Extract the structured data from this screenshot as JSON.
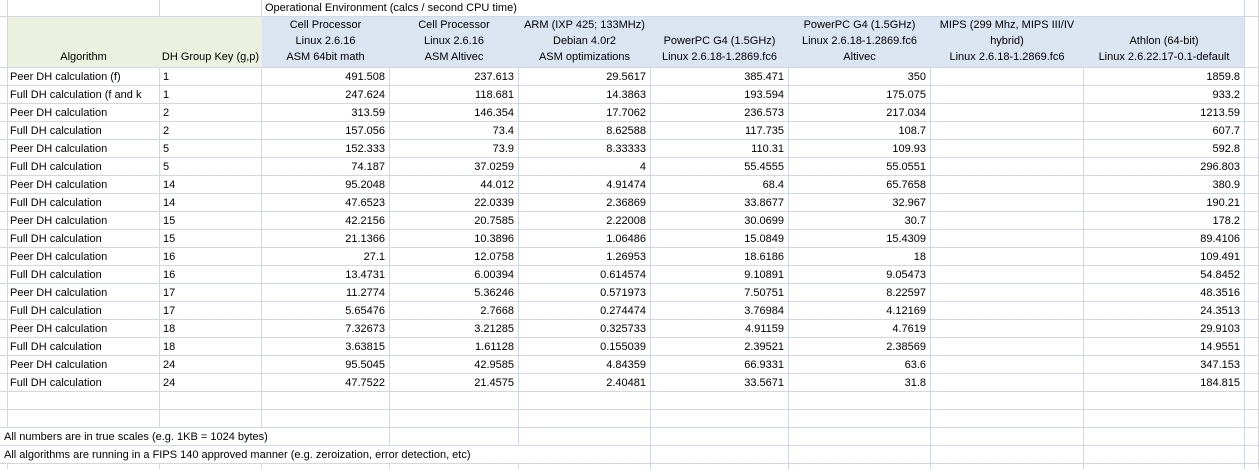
{
  "title": "Operational Environment (calcs / second CPU time)",
  "headers": {
    "algorithm": "Algorithm",
    "group_key": "DH Group Key (g,p)"
  },
  "environments": [
    {
      "name": "cell-processor-asm-64bit",
      "lines": [
        "Cell Processor",
        "Linux 2.6.16",
        "ASM 64bit math"
      ]
    },
    {
      "name": "cell-processor-asm-altivec",
      "lines": [
        "Cell Processor",
        "Linux 2.6.16",
        "ASM Altivec"
      ]
    },
    {
      "name": "arm-ixp425",
      "lines": [
        "ARM (IXP 425; 133MHz)",
        "Debian 4.0r2",
        "ASM optimizations"
      ]
    },
    {
      "name": "powerpc-g4",
      "lines": [
        "PowerPC G4 (1.5GHz)",
        "Linux 2.6.18-1.2869.fc6"
      ]
    },
    {
      "name": "powerpc-g4-altivec",
      "lines": [
        "PowerPC G4 (1.5GHz)",
        "Linux 2.6.18-1.2869.fc6",
        "Altivec"
      ]
    },
    {
      "name": "mips-hybrid",
      "lines": [
        "MIPS (299 Mhz, MIPS III/IV",
        "hybrid)",
        "Linux 2.6.18-1.2869.fc6"
      ]
    },
    {
      "name": "athlon-64bit",
      "lines": [
        "Athlon (64-bit)",
        "Linux 2.6.22.17-0.1-default"
      ]
    }
  ],
  "rows": [
    {
      "algorithm": "Peer DH calculation (f)",
      "group": "1",
      "values": [
        "491.508",
        "237.613",
        "29.5617",
        "385.471",
        "350",
        "",
        "1859.8"
      ]
    },
    {
      "algorithm": "Full DH calculation (f and k",
      "group": "1",
      "values": [
        "247.624",
        "118.681",
        "14.3863",
        "193.594",
        "175.075",
        "",
        "933.2"
      ]
    },
    {
      "algorithm": "Peer DH calculation",
      "group": "2",
      "values": [
        "313.59",
        "146.354",
        "17.7062",
        "236.573",
        "217.034",
        "",
        "1213.59"
      ]
    },
    {
      "algorithm": "Full DH calculation",
      "group": "2",
      "values": [
        "157.056",
        "73.4",
        "8.62588",
        "117.735",
        "108.7",
        "",
        "607.7"
      ]
    },
    {
      "algorithm": "Peer DH calculation",
      "group": "5",
      "values": [
        "152.333",
        "73.9",
        "8.33333",
        "110.31",
        "109.93",
        "",
        "592.8"
      ]
    },
    {
      "algorithm": "Full DH calculation",
      "group": "5",
      "values": [
        "74.187",
        "37.0259",
        "4",
        "55.4555",
        "55.0551",
        "",
        "296.803"
      ]
    },
    {
      "algorithm": "Peer DH calculation",
      "group": "14",
      "values": [
        "95.2048",
        "44.012",
        "4.91474",
        "68.4",
        "65.7658",
        "",
        "380.9"
      ]
    },
    {
      "algorithm": "Full DH calculation",
      "group": "14",
      "values": [
        "47.6523",
        "22.0339",
        "2.36869",
        "33.8677",
        "32.967",
        "",
        "190.21"
      ]
    },
    {
      "algorithm": "Peer DH calculation",
      "group": "15",
      "values": [
        "42.2156",
        "20.7585",
        "2.22008",
        "30.0699",
        "30.7",
        "",
        "178.2"
      ]
    },
    {
      "algorithm": "Full DH calculation",
      "group": "15",
      "values": [
        "21.1366",
        "10.3896",
        "1.06486",
        "15.0849",
        "15.4309",
        "",
        "89.4106"
      ]
    },
    {
      "algorithm": "Peer DH calculation",
      "group": "16",
      "values": [
        "27.1",
        "12.0758",
        "1.26953",
        "18.6186",
        "18",
        "",
        "109.491"
      ]
    },
    {
      "algorithm": "Full DH calculation",
      "group": "16",
      "values": [
        "13.4731",
        "6.00394",
        "0.614574",
        "9.10891",
        "9.05473",
        "",
        "54.8452"
      ]
    },
    {
      "algorithm": "Peer DH calculation",
      "group": "17",
      "values": [
        "11.2774",
        "5.36246",
        "0.571973",
        "7.50751",
        "8.22597",
        "",
        "48.3516"
      ]
    },
    {
      "algorithm": "Full DH calculation",
      "group": "17",
      "values": [
        "5.65476",
        "2.7668",
        "0.274474",
        "3.76984",
        "4.12169",
        "",
        "24.3513"
      ]
    },
    {
      "algorithm": "Peer DH calculation",
      "group": "18",
      "values": [
        "7.32673",
        "3.21285",
        "0.325733",
        "4.91159",
        "4.7619",
        "",
        "29.9103"
      ]
    },
    {
      "algorithm": "Full DH calculation",
      "group": "18",
      "values": [
        "3.63815",
        "1.61128",
        "0.155039",
        "2.39521",
        "2.38569",
        "",
        "14.9551"
      ]
    },
    {
      "algorithm": "Peer DH calculation",
      "group": "24",
      "values": [
        "95.5045",
        "42.9585",
        "4.84359",
        "66.9331",
        "63.6",
        "",
        "347.153"
      ]
    },
    {
      "algorithm": "Full DH calculation",
      "group": "24",
      "values": [
        "47.7522",
        "21.4575",
        "2.40481",
        "33.5671",
        "31.8",
        "",
        "184.815"
      ]
    }
  ],
  "footnotes": [
    "All numbers are in true scales (e.g. 1KB = 1024 bytes)",
    "All algorithms are running in a FIPS 140 approved manner (e.g. zeroization, error detection, etc)"
  ],
  "colors": {
    "header_green": "#EBF1DE",
    "header_blue": "#DBE5F1",
    "gridline": "#D0D7E5"
  }
}
